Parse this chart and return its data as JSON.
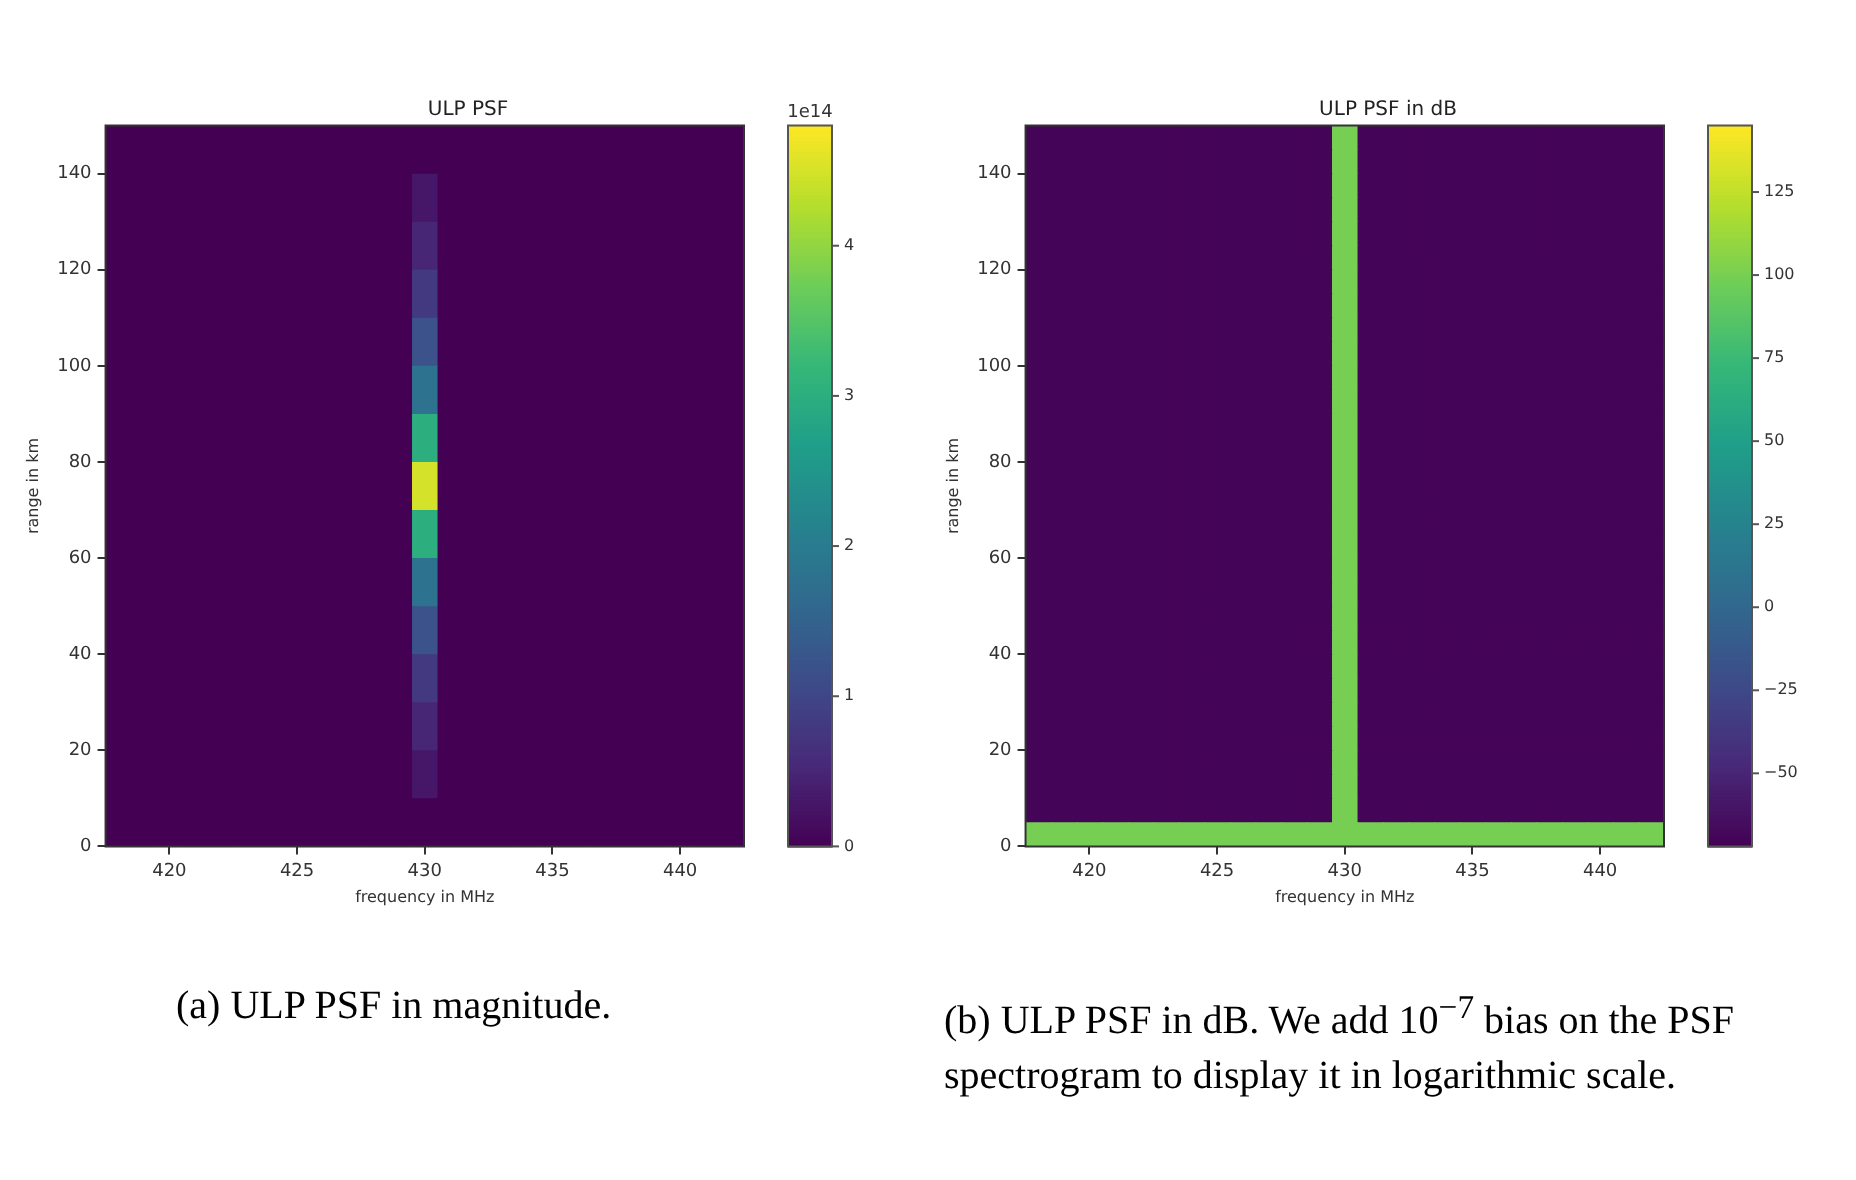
{
  "chart_data": [
    {
      "type": "heatmap",
      "title": "ULP PSF",
      "xlabel": "frequency in MHz",
      "ylabel": "range in km",
      "clabel": "1e14",
      "xlim": [
        417.5,
        442.5
      ],
      "xticks": [
        420,
        425,
        430,
        435,
        440
      ],
      "ylim": [
        0,
        150
      ],
      "yticks": [
        0,
        20,
        40,
        60,
        80,
        100,
        120,
        140
      ],
      "clim": [
        0,
        4.8
      ],
      "cticks": [
        0,
        1,
        2,
        3,
        4
      ],
      "annotations": [
        "(a)  ULP PSF in magnitude."
      ],
      "x": [
        418,
        419,
        420,
        421,
        422,
        423,
        424,
        425,
        426,
        427,
        428,
        429,
        430,
        431,
        432,
        433,
        434,
        435,
        436,
        437,
        438,
        439,
        440,
        441,
        442
      ],
      "cells": [
        [
          0,
          0,
          0,
          0,
          0,
          0,
          0,
          0,
          0,
          0,
          0,
          0,
          0,
          0,
          0,
          0,
          0,
          0,
          0,
          0,
          0,
          0,
          0,
          0,
          0
        ],
        [
          0,
          0,
          0,
          0,
          0,
          0,
          0,
          0,
          0,
          0,
          0,
          0,
          0.3,
          0,
          0,
          0,
          0,
          0,
          0,
          0,
          0,
          0,
          0,
          0,
          0
        ],
        [
          0,
          0,
          0,
          0,
          0,
          0,
          0,
          0,
          0,
          0,
          0,
          0,
          0.5,
          0,
          0,
          0,
          0,
          0,
          0,
          0,
          0,
          0,
          0,
          0,
          0
        ],
        [
          0,
          0,
          0,
          0,
          0,
          0,
          0,
          0,
          0,
          0,
          0,
          0,
          0.8,
          0,
          0,
          0,
          0,
          0,
          0,
          0,
          0,
          0,
          0,
          0,
          0
        ],
        [
          0,
          0,
          0,
          0,
          0,
          0,
          0,
          0,
          0,
          0,
          0,
          0,
          1.2,
          0,
          0,
          0,
          0,
          0,
          0,
          0,
          0,
          0,
          0,
          0,
          0
        ],
        [
          0,
          0,
          0,
          0,
          0,
          0,
          0,
          0,
          0,
          0,
          0,
          0,
          1.8,
          0,
          0,
          0,
          0,
          0,
          0,
          0,
          0,
          0,
          0,
          0,
          0
        ],
        [
          0,
          0,
          0,
          0,
          0,
          0,
          0,
          0,
          0,
          0,
          0,
          0,
          3,
          0,
          0,
          0,
          0,
          0,
          0,
          0,
          0,
          0,
          0,
          0,
          0
        ],
        [
          0,
          0,
          0,
          0,
          0,
          0,
          0,
          0,
          0,
          0,
          0,
          0,
          4.5,
          0,
          0,
          0,
          0,
          0,
          0,
          0,
          0,
          0,
          0,
          0,
          0
        ],
        [
          0,
          0,
          0,
          0,
          0,
          0,
          0,
          0,
          0,
          0,
          0,
          0,
          3,
          0,
          0,
          0,
          0,
          0,
          0,
          0,
          0,
          0,
          0,
          0,
          0
        ],
        [
          0,
          0,
          0,
          0,
          0,
          0,
          0,
          0,
          0,
          0,
          0,
          0,
          1.8,
          0,
          0,
          0,
          0,
          0,
          0,
          0,
          0,
          0,
          0,
          0,
          0
        ],
        [
          0,
          0,
          0,
          0,
          0,
          0,
          0,
          0,
          0,
          0,
          0,
          0,
          1.2,
          0,
          0,
          0,
          0,
          0,
          0,
          0,
          0,
          0,
          0,
          0,
          0
        ],
        [
          0,
          0,
          0,
          0,
          0,
          0,
          0,
          0,
          0,
          0,
          0,
          0,
          0.8,
          0,
          0,
          0,
          0,
          0,
          0,
          0,
          0,
          0,
          0,
          0,
          0
        ],
        [
          0,
          0,
          0,
          0,
          0,
          0,
          0,
          0,
          0,
          0,
          0,
          0,
          0.5,
          0,
          0,
          0,
          0,
          0,
          0,
          0,
          0,
          0,
          0,
          0,
          0
        ],
        [
          0,
          0,
          0,
          0,
          0,
          0,
          0,
          0,
          0,
          0,
          0,
          0,
          0.3,
          0,
          0,
          0,
          0,
          0,
          0,
          0,
          0,
          0,
          0,
          0,
          0
        ],
        [
          0,
          0,
          0,
          0,
          0,
          0,
          0,
          0,
          0,
          0,
          0,
          0,
          0,
          0,
          0,
          0,
          0,
          0,
          0,
          0,
          0,
          0,
          0,
          0,
          0
        ]
      ]
    },
    {
      "type": "heatmap",
      "title": "ULP PSF in dB",
      "xlabel": "frequency in MHz",
      "ylabel": "range in km",
      "xlim": [
        417.5,
        442.5
      ],
      "xticks": [
        420,
        425,
        430,
        435,
        440
      ],
      "ylim": [
        0,
        150
      ],
      "yticks": [
        0,
        20,
        40,
        60,
        80,
        100,
        120,
        140
      ],
      "clim": [
        -72,
        145
      ],
      "cticks": [
        -50,
        -25,
        0,
        25,
        50,
        75,
        100,
        125
      ],
      "annotations": [
        "(b)  ULP PSF in dB. We add 10$^{−7}$ bias on the PSF spectrogram to display it in logarithmic scale."
      ],
      "x": [
        418,
        419,
        420,
        421,
        422,
        423,
        424,
        425,
        426,
        427,
        428,
        429,
        430,
        431,
        432,
        433,
        434,
        435,
        436,
        437,
        438,
        439,
        440,
        441,
        442
      ],
      "cells": [
        [
          -70,
          -70,
          -70,
          -70,
          -70,
          -70,
          -70,
          -70,
          -70,
          -70,
          -70,
          -70,
          100,
          -70,
          -70,
          -70,
          -70,
          -70,
          -70,
          -70,
          -70,
          -70,
          -70,
          -70,
          -70
        ],
        [
          -70,
          -70,
          -70,
          -70,
          -70,
          -70,
          -70,
          -70,
          -70,
          -70,
          -70,
          -70,
          100,
          -70,
          -70,
          -70,
          -70,
          -70,
          -70,
          -70,
          -70,
          -70,
          -70,
          -70,
          -70
        ],
        [
          -70,
          -70,
          -70,
          -70,
          -70,
          -70,
          -70,
          -70,
          -70,
          -70,
          -70,
          -70,
          100,
          -70,
          -70,
          -70,
          -70,
          -70,
          -70,
          -70,
          -70,
          -70,
          -70,
          -70,
          -70
        ],
        [
          -70,
          -70,
          -70,
          -70,
          -70,
          -70,
          -70,
          -70,
          -70,
          -70,
          -70,
          -70,
          100,
          -70,
          -70,
          -70,
          -70,
          -70,
          -70,
          -70,
          -70,
          -70,
          -70,
          -70,
          -70
        ],
        [
          -70,
          -70,
          -70,
          -70,
          -70,
          -70,
          -70,
          -70,
          -70,
          -70,
          -70,
          -70,
          100,
          -70,
          -70,
          -70,
          -70,
          -70,
          -70,
          -70,
          -70,
          -70,
          -70,
          -70,
          -70
        ],
        [
          -70,
          -70,
          -70,
          -70,
          -70,
          -70,
          -70,
          -70,
          -70,
          -70,
          -70,
          -70,
          100,
          -70,
          -70,
          -70,
          -70,
          -70,
          -70,
          -70,
          -70,
          -70,
          -70,
          -70,
          -70
        ],
        [
          -70,
          -70,
          -70,
          -70,
          -70,
          -70,
          -70,
          -70,
          -70,
          -70,
          -70,
          -70,
          100,
          -70,
          -70,
          -70,
          -70,
          -70,
          -70,
          -70,
          -70,
          -70,
          -70,
          -70,
          -70
        ],
        [
          -70,
          -70,
          -70,
          -70,
          -70,
          -70,
          -70,
          -70,
          -70,
          -70,
          -70,
          -70,
          100,
          -70,
          -70,
          -70,
          -70,
          -70,
          -70,
          -70,
          -70,
          -70,
          -70,
          -70,
          -70
        ],
        [
          -70,
          -70,
          -70,
          -70,
          -70,
          -70,
          -70,
          -70,
          -70,
          -70,
          -70,
          -70,
          100,
          -70,
          -70,
          -70,
          -70,
          -70,
          -70,
          -70,
          -70,
          -70,
          -70,
          -70,
          -70
        ],
        [
          -70,
          -70,
          -70,
          -70,
          -70,
          -70,
          -70,
          -70,
          -70,
          -70,
          -70,
          -70,
          100,
          -70,
          -70,
          -70,
          -70,
          -70,
          -70,
          -70,
          -70,
          -70,
          -70,
          -70,
          -70
        ],
        [
          -70,
          -70,
          -70,
          -70,
          -70,
          -70,
          -70,
          -70,
          -70,
          -70,
          -70,
          -70,
          100,
          -70,
          -70,
          -70,
          -70,
          -70,
          -70,
          -70,
          -70,
          -70,
          -70,
          -70,
          -70
        ],
        [
          -70,
          -70,
          -70,
          -70,
          -70,
          -70,
          -70,
          -70,
          -70,
          -70,
          -70,
          -70,
          100,
          -70,
          -70,
          -70,
          -70,
          -70,
          -70,
          -70,
          -70,
          -70,
          -70,
          -70,
          -70
        ],
        [
          -70,
          -70,
          -70,
          -70,
          -70,
          -70,
          -70,
          -70,
          -70,
          -70,
          -70,
          -70,
          100,
          -70,
          -70,
          -70,
          -70,
          -70,
          -70,
          -70,
          -70,
          -70,
          -70,
          -70,
          -70
        ],
        [
          -70,
          -70,
          -70,
          -70,
          -70,
          -70,
          -70,
          -70,
          -70,
          -70,
          -70,
          -70,
          100,
          -70,
          -70,
          -70,
          -70,
          -70,
          -70,
          -70,
          -70,
          -70,
          -70,
          -70,
          -70
        ],
        [
          -70,
          -70,
          -70,
          -70,
          -70,
          -70,
          -70,
          -70,
          -70,
          -70,
          -70,
          -70,
          100,
          -70,
          -70,
          -70,
          -70,
          -70,
          -70,
          -70,
          -70,
          -70,
          -70,
          -70,
          -70
        ],
        [
          -70,
          -70,
          -70,
          -70,
          -70,
          -70,
          -70,
          -70,
          -70,
          -70,
          -70,
          -70,
          100,
          -70,
          -70,
          -70,
          -70,
          -70,
          -70,
          -70,
          -70,
          -70,
          -70,
          -70,
          -70
        ],
        [
          -70,
          -70,
          -70,
          -70,
          -70,
          -70,
          -70,
          -70,
          -70,
          -70,
          -70,
          -70,
          100,
          -70,
          -70,
          -70,
          -70,
          -70,
          -70,
          -70,
          -70,
          -70,
          -70,
          -70,
          -70
        ],
        [
          -70,
          -70,
          -70,
          -70,
          -70,
          -70,
          -70,
          -70,
          -70,
          -70,
          -70,
          -70,
          100,
          -70,
          -70,
          -70,
          -70,
          -70,
          -70,
          -70,
          -70,
          -70,
          -70,
          -70,
          -70
        ],
        [
          -70,
          -70,
          -70,
          -70,
          -70,
          -70,
          -70,
          -70,
          -70,
          -70,
          -70,
          -70,
          100,
          -70,
          -70,
          -70,
          -70,
          -70,
          -70,
          -70,
          -70,
          -70,
          -70,
          -70,
          -70
        ],
        [
          -70,
          -70,
          -70,
          -70,
          -70,
          -70,
          -70,
          -70,
          -70,
          -70,
          -70,
          -70,
          100,
          -70,
          -70,
          -70,
          -70,
          -70,
          -70,
          -70,
          -70,
          -70,
          -70,
          -70,
          -70
        ],
        [
          -70,
          -70,
          -70,
          -70,
          -70,
          -70,
          -70,
          -70,
          -70,
          -70,
          -70,
          -70,
          100,
          -70,
          -70,
          -70,
          -70,
          -70,
          -70,
          -70,
          -70,
          -70,
          -70,
          -70,
          -70
        ],
        [
          -70,
          -70,
          -70,
          -70,
          -70,
          -70,
          -70,
          -70,
          -70,
          -70,
          -70,
          -70,
          100,
          -70,
          -70,
          -70,
          -70,
          -70,
          -70,
          -70,
          -70,
          -70,
          -70,
          -70,
          -70
        ],
        [
          -70,
          -70,
          -70,
          -70,
          -70,
          -70,
          -70,
          -70,
          -70,
          -70,
          -70,
          -70,
          100,
          -70,
          -70,
          -70,
          -70,
          -70,
          -70,
          -70,
          -70,
          -70,
          -70,
          -70,
          -70
        ],
        [
          -70,
          -70,
          -70,
          -70,
          -70,
          -70,
          -70,
          -70,
          -70,
          -70,
          -70,
          -70,
          100,
          -70,
          -70,
          -70,
          -70,
          -70,
          -70,
          -70,
          -70,
          -70,
          -70,
          -70,
          -70
        ],
        [
          -70,
          -70,
          -70,
          -70,
          -70,
          -70,
          -70,
          -70,
          -70,
          -70,
          -70,
          -70,
          100,
          -70,
          -70,
          -70,
          -70,
          -70,
          -70,
          -70,
          -70,
          -70,
          -70,
          -70,
          -70
        ],
        [
          -70,
          -70,
          -70,
          -70,
          -70,
          -70,
          -70,
          -70,
          -70,
          -70,
          -70,
          -70,
          100,
          -70,
          -70,
          -70,
          -70,
          -70,
          -70,
          -70,
          -70,
          -70,
          -70,
          -70,
          -70
        ],
        [
          -70,
          -70,
          -70,
          -70,
          -70,
          -70,
          -70,
          -70,
          -70,
          -70,
          -70,
          -70,
          100,
          -70,
          -70,
          -70,
          -70,
          -70,
          -70,
          -70,
          -70,
          -70,
          -70,
          -70,
          -70
        ],
        [
          -70,
          -70,
          -70,
          -70,
          -70,
          -70,
          -70,
          -70,
          -70,
          -70,
          -70,
          -70,
          100,
          -70,
          -70,
          -70,
          -70,
          -70,
          -70,
          -70,
          -70,
          -70,
          -70,
          -70,
          -70
        ],
        [
          -70,
          -70,
          -70,
          -70,
          -70,
          -70,
          -70,
          -70,
          -70,
          -70,
          -70,
          -70,
          100,
          -70,
          -70,
          -70,
          -70,
          -70,
          -70,
          -70,
          -70,
          -70,
          -70,
          -70,
          -70
        ],
        [
          100,
          100,
          100,
          100,
          100,
          100,
          100,
          100,
          100,
          100,
          100,
          100,
          100,
          100,
          100,
          100,
          100,
          100,
          100,
          100,
          100,
          100,
          100,
          100,
          100
        ]
      ]
    }
  ]
}
